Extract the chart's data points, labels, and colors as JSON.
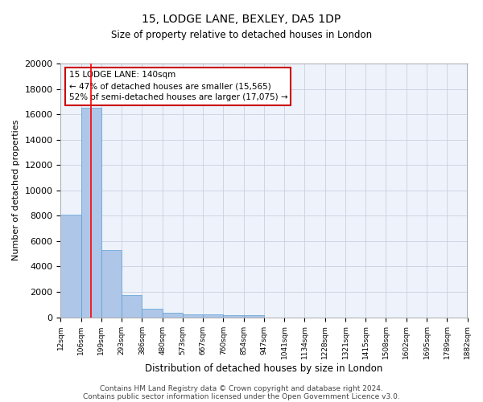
{
  "title1": "15, LODGE LANE, BEXLEY, DA5 1DP",
  "title2": "Size of property relative to detached houses in London",
  "xlabel": "Distribution of detached houses by size in London",
  "ylabel": "Number of detached properties",
  "bar_heights": [
    8100,
    16500,
    5300,
    1750,
    700,
    330,
    230,
    200,
    180,
    150,
    0,
    0,
    0,
    0,
    0,
    0,
    0,
    0,
    0,
    0
  ],
  "bar_color": "#aec6e8",
  "bar_edge_color": "#5a9fd4",
  "bg_color": "#eef3fb",
  "grid_color": "#c8d0e0",
  "red_line_x": 1.5,
  "annotation_text": "15 LODGE LANE: 140sqm\n← 47% of detached houses are smaller (15,565)\n52% of semi-detached houses are larger (17,075) →",
  "annotation_box_color": "#ffffff",
  "annotation_border_color": "#cc0000",
  "ylim": [
    0,
    20000
  ],
  "yticks": [
    0,
    2000,
    4000,
    6000,
    8000,
    10000,
    12000,
    14000,
    16000,
    18000,
    20000
  ],
  "tick_labels": [
    "12sqm",
    "106sqm",
    "199sqm",
    "293sqm",
    "386sqm",
    "480sqm",
    "573sqm",
    "667sqm",
    "760sqm",
    "854sqm",
    "947sqm",
    "1041sqm",
    "1134sqm",
    "1228sqm",
    "1321sqm",
    "1415sqm",
    "1508sqm",
    "1602sqm",
    "1695sqm",
    "1789sqm",
    "1882sqm"
  ],
  "footer1": "Contains HM Land Registry data © Crown copyright and database right 2024.",
  "footer2": "Contains public sector information licensed under the Open Government Licence v3.0.",
  "title1_fontsize": 10,
  "title2_fontsize": 8.5,
  "ylabel_fontsize": 8,
  "xlabel_fontsize": 8.5,
  "footer_fontsize": 6.5,
  "tick_fontsize": 6.5
}
